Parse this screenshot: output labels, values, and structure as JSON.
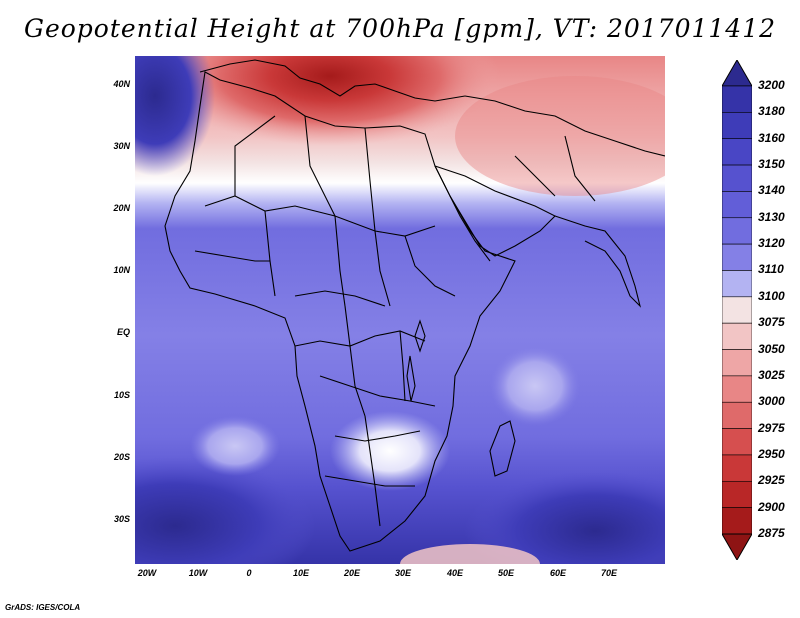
{
  "title": "Geopotential Height at 700hPa [gpm], VT: 2017011412",
  "credit": "GrADS: IGES/COLA",
  "y_axis_labels": [
    "40N",
    "30N",
    "20N",
    "10N",
    "EQ",
    "10S",
    "20S",
    "30S"
  ],
  "x_axis_labels": [
    "20W",
    "10W",
    "0",
    "10E",
    "20E",
    "30E",
    "40E",
    "50E",
    "60E",
    "70E"
  ],
  "colorbar": {
    "levels": [
      "3200",
      "3180",
      "3160",
      "3150",
      "3140",
      "3130",
      "3120",
      "3110",
      "3100",
      "3075",
      "3050",
      "3025",
      "3000",
      "2975",
      "2950",
      "2925",
      "2900",
      "2875"
    ],
    "colors": [
      "#2c2a8f",
      "#3533a8",
      "#3e3cb8",
      "#4946c5",
      "#5652cf",
      "#625ed8",
      "#716ddf",
      "#8480e6",
      "#b3b3f2",
      "#f3e3e3",
      "#f2c5c5",
      "#eea6a6",
      "#e88686",
      "#df6a6a",
      "#d64f4f",
      "#c93838",
      "#b92727",
      "#a51b1b",
      "#8e1414"
    ]
  },
  "colors": {
    "deep_blue": "#3533a8",
    "mid_blue": "#5b57d2",
    "light_blue": "#8480e6",
    "pale_blue": "#c9c7f4",
    "white": "#ffffff",
    "pink": "#f0b0b0",
    "red": "#d64f4f",
    "dark_red": "#a51b1b"
  }
}
